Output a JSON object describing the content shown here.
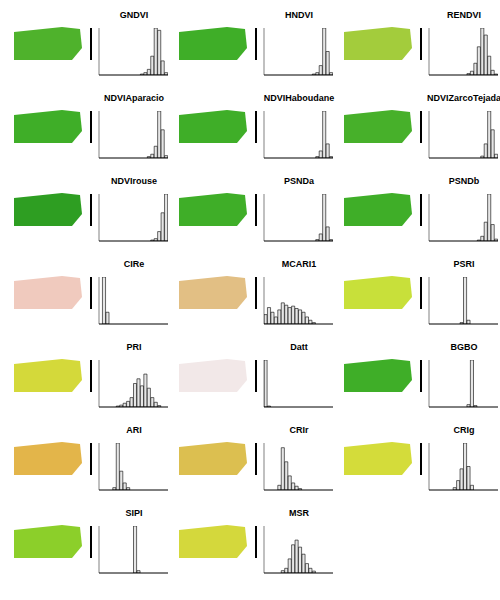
{
  "chart_data": [
    {
      "type": "histogram",
      "title": "GNDVI",
      "color": "#4fb22c",
      "bins": [
        0,
        1,
        2,
        3,
        4,
        5,
        6,
        7,
        8,
        9,
        10,
        11,
        12,
        13,
        14,
        15,
        16,
        17,
        18,
        19,
        20
      ],
      "counts": [
        0,
        0,
        0,
        0,
        0,
        0,
        0,
        0,
        0,
        0,
        0,
        0,
        2,
        5,
        12,
        40,
        100,
        95,
        30,
        5
      ],
      "xlim": [
        0,
        20
      ],
      "ylim": [
        0,
        100
      ],
      "tick_labels": false
    },
    {
      "type": "histogram",
      "title": "HNDVI",
      "color": "#3fae28",
      "bins": [
        0,
        1,
        2,
        3,
        4,
        5,
        6,
        7,
        8,
        9,
        10,
        11,
        12,
        13,
        14,
        15,
        16,
        17,
        18,
        19,
        20
      ],
      "counts": [
        0,
        0,
        0,
        0,
        0,
        0,
        0,
        0,
        0,
        0,
        0,
        0,
        0,
        0,
        2,
        5,
        20,
        100,
        50,
        5
      ],
      "xlim": [
        0,
        20
      ],
      "ylim": [
        0,
        100
      ],
      "tick_labels": false
    },
    {
      "type": "histogram",
      "title": "RENDVI",
      "color": "#a3cc3c",
      "bins": [
        0,
        1,
        2,
        3,
        4,
        5,
        6,
        7,
        8,
        9,
        10,
        11,
        12,
        13,
        14,
        15,
        16,
        17,
        18,
        19,
        20
      ],
      "counts": [
        0,
        0,
        0,
        0,
        0,
        0,
        0,
        0,
        0,
        0,
        0,
        3,
        8,
        25,
        60,
        100,
        85,
        40,
        10,
        2
      ],
      "xlim": [
        0,
        20
      ],
      "ylim": [
        0,
        100
      ],
      "tick_labels": false
    },
    {
      "type": "histogram",
      "title": "NDVIAparacio",
      "color": "#3fae28",
      "bins": [
        0,
        1,
        2,
        3,
        4,
        5,
        6,
        7,
        8,
        9,
        10,
        11,
        12,
        13,
        14,
        15,
        16,
        17,
        18,
        19,
        20
      ],
      "counts": [
        0,
        0,
        0,
        0,
        0,
        0,
        0,
        0,
        0,
        0,
        0,
        0,
        0,
        0,
        3,
        8,
        25,
        100,
        60,
        5
      ],
      "xlim": [
        0,
        20
      ],
      "ylim": [
        0,
        100
      ],
      "tick_labels": false
    },
    {
      "type": "histogram",
      "title": "NDVIHaboudane",
      "color": "#3fae28",
      "bins": [
        0,
        1,
        2,
        3,
        4,
        5,
        6,
        7,
        8,
        9,
        10,
        11,
        12,
        13,
        14,
        15,
        16,
        17,
        18,
        19,
        20
      ],
      "counts": [
        0,
        0,
        0,
        0,
        0,
        0,
        0,
        0,
        0,
        0,
        0,
        0,
        0,
        0,
        0,
        3,
        15,
        100,
        30,
        3
      ],
      "xlim": [
        0,
        20
      ],
      "ylim": [
        0,
        100
      ],
      "tick_labels": false
    },
    {
      "type": "histogram",
      "title": "NDVIZarcoTejada",
      "color": "#47b02a",
      "bins": [
        0,
        1,
        2,
        3,
        4,
        5,
        6,
        7,
        8,
        9,
        10,
        11,
        12,
        13,
        14,
        15,
        16,
        17,
        18,
        19,
        20
      ],
      "counts": [
        0,
        0,
        0,
        0,
        0,
        0,
        0,
        0,
        0,
        0,
        0,
        0,
        0,
        0,
        0,
        4,
        30,
        100,
        60,
        8
      ],
      "xlim": [
        0,
        20
      ],
      "ylim": [
        0,
        100
      ],
      "tick_labels": false
    },
    {
      "type": "histogram",
      "title": "NDVIrouse",
      "color": "#2e9e22",
      "bins": [
        0,
        1,
        2,
        3,
        4,
        5,
        6,
        7,
        8,
        9,
        10,
        11,
        12,
        13,
        14,
        15,
        16,
        17,
        18,
        19,
        20
      ],
      "counts": [
        0,
        0,
        0,
        0,
        0,
        0,
        0,
        0,
        0,
        0,
        0,
        0,
        0,
        0,
        0,
        2,
        5,
        20,
        60,
        100
      ],
      "xlim": [
        0,
        20
      ],
      "ylim": [
        0,
        100
      ],
      "tick_labels": false
    },
    {
      "type": "histogram",
      "title": "PSNDa",
      "color": "#3fae28",
      "bins": [
        0,
        1,
        2,
        3,
        4,
        5,
        6,
        7,
        8,
        9,
        10,
        11,
        12,
        13,
        14,
        15,
        16,
        17,
        18,
        19,
        20
      ],
      "counts": [
        0,
        0,
        0,
        0,
        0,
        0,
        0,
        0,
        0,
        0,
        0,
        0,
        0,
        0,
        0,
        3,
        15,
        100,
        30,
        3
      ],
      "xlim": [
        0,
        20
      ],
      "ylim": [
        0,
        100
      ],
      "tick_labels": false
    },
    {
      "type": "histogram",
      "title": "PSNDb",
      "color": "#3fae28",
      "bins": [
        0,
        1,
        2,
        3,
        4,
        5,
        6,
        7,
        8,
        9,
        10,
        11,
        12,
        13,
        14,
        15,
        16,
        17,
        18,
        19,
        20
      ],
      "counts": [
        0,
        0,
        0,
        0,
        0,
        0,
        0,
        0,
        0,
        0,
        0,
        0,
        0,
        0,
        2,
        10,
        40,
        100,
        35,
        4
      ],
      "xlim": [
        0,
        20
      ],
      "ylim": [
        0,
        100
      ],
      "tick_labels": false
    },
    {
      "type": "histogram",
      "title": "CIRe",
      "color": "#f0cabe",
      "bins": [
        0,
        1,
        2,
        3,
        4,
        5,
        6,
        7,
        8,
        9,
        10,
        11,
        12,
        13,
        14,
        15,
        16,
        17,
        18,
        19,
        20
      ],
      "counts": [
        0,
        100,
        25,
        0,
        0,
        0,
        0,
        0,
        0,
        0,
        0,
        0,
        0,
        0,
        0,
        0,
        0,
        0,
        0,
        0
      ],
      "xlim": [
        0,
        20
      ],
      "ylim": [
        0,
        100
      ],
      "tick_labels": false
    },
    {
      "type": "histogram",
      "title": "MCARI1",
      "color": "#e2bf84",
      "bins": [
        0,
        1,
        2,
        3,
        4,
        5,
        6,
        7,
        8,
        9,
        10,
        11,
        12,
        13,
        14,
        15,
        16,
        17,
        18,
        19,
        20
      ],
      "counts": [
        20,
        35,
        25,
        15,
        30,
        45,
        40,
        35,
        38,
        33,
        30,
        25,
        15,
        8,
        3,
        0,
        0,
        0,
        0,
        0
      ],
      "xlim": [
        0,
        20
      ],
      "ylim": [
        0,
        100
      ],
      "tick_labels": false
    },
    {
      "type": "histogram",
      "title": "PSRI",
      "color": "#c8e03a",
      "bins": [
        0,
        1,
        2,
        3,
        4,
        5,
        6,
        7,
        8,
        9,
        10,
        11,
        12,
        13,
        14,
        15,
        16,
        17,
        18,
        19,
        20
      ],
      "counts": [
        0,
        0,
        0,
        0,
        0,
        0,
        0,
        0,
        0,
        3,
        100,
        8,
        0,
        0,
        0,
        0,
        0,
        0,
        0,
        0
      ],
      "xlim": [
        0,
        20
      ],
      "ylim": [
        0,
        100
      ],
      "tick_labels": false
    },
    {
      "type": "histogram",
      "title": "PRI",
      "color": "#d4d93a",
      "bins": [
        0,
        1,
        2,
        3,
        4,
        5,
        6,
        7,
        8,
        9,
        10,
        11,
        12,
        13,
        14,
        15,
        16,
        17,
        18,
        19,
        20
      ],
      "counts": [
        0,
        0,
        0,
        0,
        0,
        2,
        4,
        8,
        12,
        20,
        50,
        60,
        45,
        70,
        40,
        20,
        10,
        3,
        0,
        0
      ],
      "xlim": [
        0,
        20
      ],
      "ylim": [
        0,
        100
      ],
      "tick_labels": false
    },
    {
      "type": "histogram",
      "title": "Datt",
      "color": "#f2e8e8",
      "bins": [
        0,
        1,
        2,
        3,
        4,
        5,
        6,
        7,
        8,
        9,
        10,
        11,
        12,
        13,
        14,
        15,
        16,
        17,
        18,
        19,
        20
      ],
      "counts": [
        100,
        2,
        0,
        0,
        0,
        0,
        0,
        0,
        0,
        0,
        0,
        0,
        0,
        0,
        0,
        0,
        0,
        0,
        0,
        0
      ],
      "xlim": [
        0,
        20
      ],
      "ylim": [
        0,
        100
      ],
      "tick_labels": false
    },
    {
      "type": "histogram",
      "title": "BGBO",
      "color": "#3fae28",
      "bins": [
        0,
        1,
        2,
        3,
        4,
        5,
        6,
        7,
        8,
        9,
        10,
        11,
        12,
        13,
        14,
        15,
        16,
        17,
        18,
        19,
        20
      ],
      "counts": [
        0,
        0,
        0,
        0,
        0,
        0,
        0,
        0,
        0,
        0,
        0,
        5,
        100,
        3,
        0,
        0,
        0,
        0,
        0,
        0
      ],
      "xlim": [
        0,
        20
      ],
      "ylim": [
        0,
        100
      ],
      "tick_labels": false
    },
    {
      "type": "histogram",
      "title": "ARI",
      "color": "#e3b54a",
      "bins": [
        0,
        1,
        2,
        3,
        4,
        5,
        6,
        7,
        8,
        9,
        10,
        11,
        12,
        13,
        14,
        15,
        16,
        17,
        18,
        19,
        20
      ],
      "counts": [
        0,
        0,
        0,
        0,
        5,
        100,
        40,
        15,
        5,
        0,
        0,
        0,
        0,
        0,
        0,
        0,
        0,
        0,
        0,
        0
      ],
      "xlim": [
        0,
        20
      ],
      "ylim": [
        0,
        100
      ],
      "tick_labels": false
    },
    {
      "type": "histogram",
      "title": "CRIr",
      "color": "#dcbf50",
      "bins": [
        0,
        1,
        2,
        3,
        4,
        5,
        6,
        7,
        8,
        9,
        10,
        11,
        12,
        13,
        14,
        15,
        16,
        17,
        18,
        19,
        20
      ],
      "counts": [
        0,
        0,
        0,
        0,
        10,
        90,
        60,
        30,
        15,
        8,
        3,
        0,
        0,
        0,
        0,
        0,
        0,
        0,
        0,
        0
      ],
      "xlim": [
        0,
        20
      ],
      "ylim": [
        0,
        100
      ],
      "tick_labels": false
    },
    {
      "type": "histogram",
      "title": "CRIg",
      "color": "#d4dc3a",
      "bins": [
        0,
        1,
        2,
        3,
        4,
        5,
        6,
        7,
        8,
        9,
        10,
        11,
        12,
        13,
        14,
        15,
        16,
        17,
        18,
        19,
        20
      ],
      "counts": [
        0,
        0,
        0,
        0,
        0,
        0,
        0,
        5,
        20,
        45,
        100,
        50,
        10,
        0,
        0,
        0,
        0,
        0,
        0,
        0
      ],
      "xlim": [
        0,
        20
      ],
      "ylim": [
        0,
        100
      ],
      "tick_labels": false
    },
    {
      "type": "histogram",
      "title": "SIPI",
      "color": "#8ccf2a",
      "bins": [
        0,
        1,
        2,
        3,
        4,
        5,
        6,
        7,
        8,
        9,
        10,
        11,
        12,
        13,
        14,
        15,
        16,
        17,
        18,
        19,
        20
      ],
      "counts": [
        0,
        0,
        0,
        0,
        0,
        0,
        0,
        0,
        0,
        0,
        100,
        5,
        0,
        0,
        0,
        0,
        0,
        0,
        0,
        0
      ],
      "xlim": [
        0,
        20
      ],
      "ylim": [
        0,
        100
      ],
      "tick_labels": false
    },
    {
      "type": "histogram",
      "title": "MSR",
      "color": "#d4d83c",
      "bins": [
        0,
        1,
        2,
        3,
        4,
        5,
        6,
        7,
        8,
        9,
        10,
        11,
        12,
        13,
        14,
        15,
        16,
        17,
        18,
        19,
        20
      ],
      "counts": [
        0,
        0,
        0,
        0,
        0,
        5,
        10,
        30,
        60,
        70,
        55,
        40,
        20,
        10,
        4,
        0,
        0,
        0,
        0,
        0
      ],
      "xlim": [
        0,
        20
      ],
      "ylim": [
        0,
        100
      ],
      "tick_labels": false
    }
  ]
}
